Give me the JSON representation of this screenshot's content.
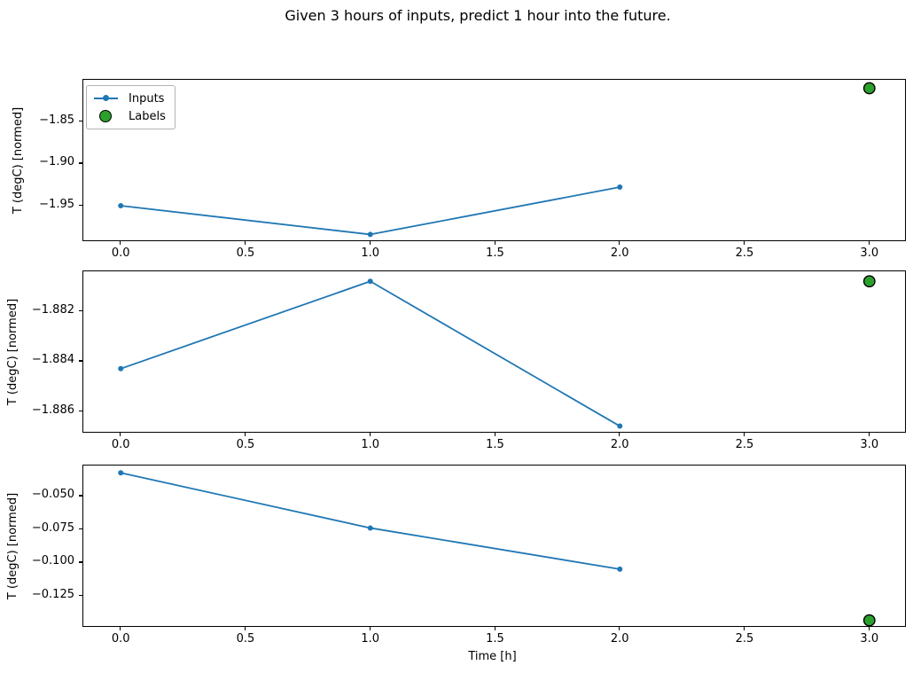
{
  "figure": {
    "title": "Given 3 hours of inputs, predict 1 hour into the future.",
    "background": "#ffffff"
  },
  "colors": {
    "inputs": "#1f77b4",
    "labels_fill": "#2ca02c",
    "labels_edge": "#000000",
    "axis": "#000000",
    "text": "#000000",
    "legend_border": "#b3b3b3"
  },
  "chart_data": [
    {
      "type": "line",
      "title": "",
      "xlabel": "",
      "ylabel": "T (degC) [normed]",
      "xlim": [
        -0.15,
        3.15
      ],
      "ylim": [
        -1.993,
        -1.801
      ],
      "grid": false,
      "x_ticks": [
        {
          "v": 0.0,
          "label": "0.0"
        },
        {
          "v": 0.5,
          "label": "0.5"
        },
        {
          "v": 1.0,
          "label": "1.0"
        },
        {
          "v": 1.5,
          "label": "1.5"
        },
        {
          "v": 2.0,
          "label": "2.0"
        },
        {
          "v": 2.5,
          "label": "2.5"
        },
        {
          "v": 3.0,
          "label": "3.0"
        }
      ],
      "y_ticks": [
        {
          "v": -1.85,
          "label": "−1.85"
        },
        {
          "v": -1.9,
          "label": "−1.90"
        },
        {
          "v": -1.95,
          "label": "−1.95"
        }
      ],
      "series": [
        {
          "name": "Inputs",
          "kind": "line-markers",
          "x": [
            0,
            1,
            2
          ],
          "y": [
            -1.95,
            -1.984,
            -1.928
          ]
        },
        {
          "name": "Labels",
          "kind": "scatter",
          "x": [
            3
          ],
          "y": [
            -1.811
          ]
        }
      ],
      "legend": {
        "visible": true,
        "location": "upper left",
        "entries": [
          "Inputs",
          "Labels"
        ]
      }
    },
    {
      "type": "line",
      "title": "",
      "xlabel": "",
      "ylabel": "T (degC) [normed]",
      "xlim": [
        -0.15,
        3.15
      ],
      "ylim": [
        -1.8869,
        -1.8804
      ],
      "grid": false,
      "x_ticks": [
        {
          "v": 0.0,
          "label": "0.0"
        },
        {
          "v": 0.5,
          "label": "0.5"
        },
        {
          "v": 1.0,
          "label": "1.0"
        },
        {
          "v": 1.5,
          "label": "1.5"
        },
        {
          "v": 2.0,
          "label": "2.0"
        },
        {
          "v": 2.5,
          "label": "2.5"
        },
        {
          "v": 3.0,
          "label": "3.0"
        }
      ],
      "y_ticks": [
        {
          "v": -1.882,
          "label": "−1.882"
        },
        {
          "v": -1.884,
          "label": "−1.884"
        },
        {
          "v": -1.886,
          "label": "−1.886"
        }
      ],
      "series": [
        {
          "name": "Inputs",
          "kind": "line-markers",
          "x": [
            0,
            1,
            2
          ],
          "y": [
            -1.8843,
            -1.8808,
            -1.8866
          ]
        },
        {
          "name": "Labels",
          "kind": "scatter",
          "x": [
            3
          ],
          "y": [
            -1.8808
          ]
        }
      ],
      "legend": {
        "visible": false,
        "entries": []
      }
    },
    {
      "type": "line",
      "title": "",
      "xlabel": "Time [h]",
      "ylabel": "T (degC) [normed]",
      "xlim": [
        -0.15,
        3.15
      ],
      "ylim": [
        -0.1491,
        -0.027
      ],
      "grid": false,
      "x_ticks": [
        {
          "v": 0.0,
          "label": "0.0"
        },
        {
          "v": 0.5,
          "label": "0.5"
        },
        {
          "v": 1.0,
          "label": "1.0"
        },
        {
          "v": 1.5,
          "label": "1.5"
        },
        {
          "v": 2.0,
          "label": "2.0"
        },
        {
          "v": 2.5,
          "label": "2.5"
        },
        {
          "v": 3.0,
          "label": "3.0"
        }
      ],
      "y_ticks": [
        {
          "v": -0.05,
          "label": "−0.050"
        },
        {
          "v": -0.075,
          "label": "−0.075"
        },
        {
          "v": -0.1,
          "label": "−0.100"
        },
        {
          "v": -0.125,
          "label": "−0.125"
        }
      ],
      "series": [
        {
          "name": "Inputs",
          "kind": "line-markers",
          "x": [
            0,
            1,
            2
          ],
          "y": [
            -0.0325,
            -0.074,
            -0.105
          ]
        },
        {
          "name": "Labels",
          "kind": "scatter",
          "x": [
            3
          ],
          "y": [
            -0.1435
          ]
        }
      ],
      "legend": {
        "visible": false,
        "entries": []
      }
    }
  ]
}
